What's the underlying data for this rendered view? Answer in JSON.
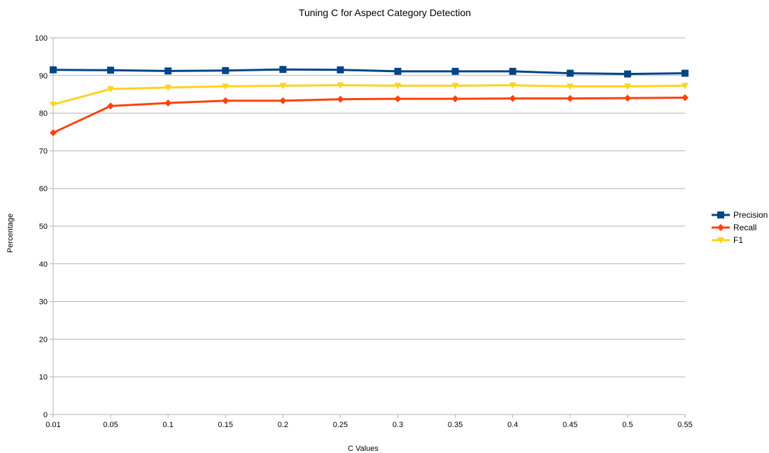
{
  "chart_data": {
    "type": "line",
    "title": "Tuning C for Aspect Category Detection",
    "xlabel": "C Values",
    "ylabel": "Percentage",
    "categories": [
      "0.01",
      "0.05",
      "0.1",
      "0.15",
      "0.2",
      "0.25",
      "0.3",
      "0.35",
      "0.4",
      "0.45",
      "0.5",
      "0.55"
    ],
    "ylim": [
      0,
      100
    ],
    "yticks": [
      "0",
      "10",
      "20",
      "30",
      "40",
      "50",
      "60",
      "70",
      "80",
      "90",
      "100"
    ],
    "grid": true,
    "legend_position": "right",
    "series": [
      {
        "name": "Precision",
        "color": "#004586",
        "marker": "square",
        "values": [
          91.5,
          91.4,
          91.2,
          91.3,
          91.6,
          91.5,
          91.1,
          91.1,
          91.1,
          90.6,
          90.4,
          90.6
        ]
      },
      {
        "name": "Recall",
        "color": "#ff420e",
        "marker": "diamond",
        "values": [
          74.8,
          81.9,
          82.7,
          83.3,
          83.3,
          83.7,
          83.8,
          83.8,
          83.9,
          83.9,
          84.0,
          84.1
        ]
      },
      {
        "name": "F1",
        "color": "#ffd320",
        "marker": "triangle-down",
        "values": [
          82.3,
          86.4,
          86.8,
          87.1,
          87.3,
          87.4,
          87.3,
          87.3,
          87.4,
          87.1,
          87.1,
          87.3
        ]
      }
    ]
  }
}
